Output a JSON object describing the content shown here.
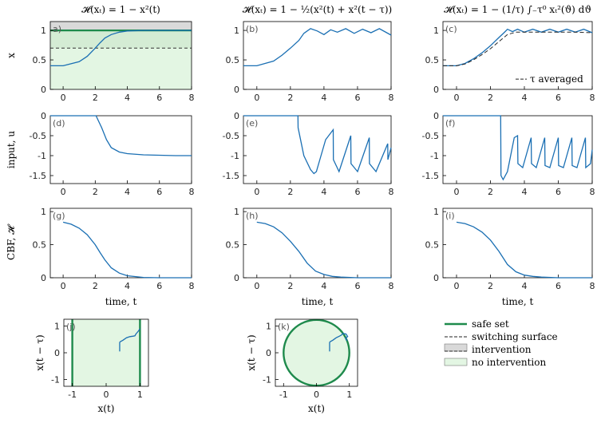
{
  "colors": {
    "curve": "#1a6fb3",
    "safe": "#1e8a4c",
    "fill": "#e3f6e3",
    "gray": "#d9d9d9",
    "dash": "#333333"
  },
  "chart_data": {
    "columns": [
      {
        "title": "𝓗(xₜ) = 1 − x²(t)"
      },
      {
        "title": "𝓗(xₜ) = 1 − ½(x²(t) + x²(t − τ))"
      },
      {
        "title": "𝓗(xₜ) = 1 − (1/τ) ∫₋τ⁰ xₜ²(ϑ) dϑ"
      }
    ],
    "rows": [
      {
        "ylabel": "x",
        "xlabel": "",
        "yticks": [
          "0",
          "0.5",
          "1"
        ],
        "yvals": [
          0,
          0.5,
          1
        ],
        "ylim": [
          0,
          1.15
        ]
      },
      {
        "ylabel": "input, u",
        "xlabel": "",
        "yticks": [
          "0",
          "-0.5",
          "-1",
          "-1.5"
        ],
        "yvals": [
          0,
          -0.5,
          -1,
          -1.5
        ],
        "ylim": [
          -1.7,
          0
        ]
      },
      {
        "ylabel": "CBF, 𝓗",
        "xlabel": "time, t",
        "yticks": [
          "0",
          "0.5",
          "1"
        ],
        "yvals": [
          0,
          0.5,
          1
        ],
        "ylim": [
          0,
          1.05
        ]
      }
    ],
    "xticks": [
      "0",
      "2",
      "4",
      "6",
      "8"
    ],
    "xvals": [
      0,
      2,
      4,
      6,
      8
    ],
    "xlim": [
      -0.8,
      8
    ],
    "panel_labels": [
      "a)",
      "(b)",
      "(c)",
      "(d)",
      "(e)",
      "(f)",
      "(g)",
      "(h)",
      "(i)",
      "(j)",
      "(k)"
    ],
    "state": [
      {
        "t": [
          -0.8,
          0,
          1,
          1.5,
          2,
          2.3,
          2.6,
          3,
          3.5,
          4,
          5,
          6,
          8
        ],
        "x": [
          0.4,
          0.4,
          0.47,
          0.56,
          0.7,
          0.79,
          0.87,
          0.93,
          0.97,
          0.99,
          1.0,
          1.0,
          1.0
        ]
      },
      {
        "t": [
          -0.8,
          0,
          1,
          1.5,
          2,
          2.5,
          2.8,
          3.2,
          3.6,
          4,
          4.4,
          4.8,
          5.3,
          5.8,
          6.3,
          6.8,
          7.3,
          8
        ],
        "x": [
          0.4,
          0.4,
          0.48,
          0.58,
          0.7,
          0.83,
          0.95,
          1.03,
          0.99,
          0.93,
          1.01,
          0.97,
          1.03,
          0.95,
          1.02,
          0.96,
          1.03,
          0.92
        ]
      },
      {
        "t": [
          -0.8,
          0,
          0.5,
          1,
          1.5,
          2,
          2.5,
          2.8,
          3.0,
          3.3,
          3.6,
          4,
          4.5,
          5,
          5.5,
          6,
          6.5,
          7,
          7.5,
          8
        ],
        "x": [
          0.4,
          0.4,
          0.44,
          0.52,
          0.62,
          0.74,
          0.88,
          0.96,
          1.02,
          0.98,
          1.02,
          0.97,
          1.02,
          0.97,
          1.02,
          0.97,
          1.02,
          0.97,
          1.02,
          0.96
        ]
      }
    ],
    "tau_avg": {
      "t": [
        -0.8,
        0,
        0.5,
        1,
        1.5,
        2,
        2.5,
        3,
        3.5,
        4,
        5,
        6,
        7,
        8
      ],
      "x": [
        0.4,
        0.4,
        0.43,
        0.5,
        0.59,
        0.69,
        0.81,
        0.93,
        0.97,
        0.97,
        0.97,
        0.97,
        0.97,
        0.96
      ]
    },
    "input": [
      {
        "t": [
          -0.8,
          2.05,
          2.4,
          2.7,
          3,
          3.5,
          4,
          5,
          6,
          7,
          8
        ],
        "u": [
          0,
          0,
          -0.3,
          -0.6,
          -0.8,
          -0.91,
          -0.95,
          -0.98,
          -0.99,
          -1.0,
          -1.0
        ]
      },
      {
        "t": [
          -0.8,
          2.45,
          2.46,
          2.8,
          3.2,
          3.4,
          3.55,
          4.1,
          4.55,
          4.56,
          4.9,
          5.6,
          5.61,
          6.0,
          6.7,
          6.71,
          7.1,
          7.8,
          7.81,
          8
        ],
        "u": [
          0,
          0,
          -0.3,
          -1.0,
          -1.35,
          -1.45,
          -1.4,
          -0.6,
          -0.35,
          -1.1,
          -1.4,
          -0.5,
          -1.2,
          -1.4,
          -0.55,
          -1.2,
          -1.4,
          -0.7,
          -1.1,
          -0.8
        ]
      },
      {
        "t": [
          -0.8,
          2.6,
          2.62,
          2.75,
          3.0,
          3.4,
          3.6,
          3.62,
          3.9,
          4.4,
          4.42,
          4.7,
          5.2,
          5.22,
          5.5,
          6.0,
          6.02,
          6.3,
          6.8,
          6.82,
          7.1,
          7.6,
          7.62,
          7.9,
          8
        ],
        "u": [
          0,
          0,
          -1.5,
          -1.6,
          -1.4,
          -0.55,
          -0.5,
          -1.2,
          -1.3,
          -0.55,
          -1.2,
          -1.3,
          -0.55,
          -1.25,
          -1.3,
          -0.55,
          -1.25,
          -1.3,
          -0.55,
          -1.25,
          -1.3,
          -0.55,
          -1.3,
          -1.2,
          -0.85
        ]
      }
    ],
    "cbf": [
      {
        "t": [
          0,
          0.5,
          1,
          1.5,
          2,
          2.3,
          2.6,
          3,
          3.5,
          4,
          5,
          6,
          8
        ],
        "h": [
          0.84,
          0.81,
          0.75,
          0.65,
          0.5,
          0.38,
          0.27,
          0.15,
          0.07,
          0.03,
          0.005,
          0,
          0
        ]
      },
      {
        "t": [
          0,
          0.5,
          1,
          1.5,
          2,
          2.5,
          3,
          3.5,
          4,
          4.5,
          5,
          6,
          8
        ],
        "h": [
          0.84,
          0.82,
          0.77,
          0.68,
          0.55,
          0.4,
          0.22,
          0.1,
          0.05,
          0.02,
          0.01,
          0,
          0
        ]
      },
      {
        "t": [
          0,
          0.5,
          1,
          1.5,
          2,
          2.5,
          3,
          3.5,
          4,
          4.5,
          5,
          6,
          8
        ],
        "h": [
          0.84,
          0.82,
          0.77,
          0.69,
          0.57,
          0.4,
          0.2,
          0.09,
          0.04,
          0.02,
          0.01,
          0,
          0
        ]
      }
    ],
    "phase": {
      "xlabel": "x(t)",
      "ylabel": "x(t − τ)",
      "j": {
        "xticks": [
          "-1",
          "0",
          "1"
        ],
        "xvals": [
          -1,
          0,
          1
        ],
        "yticks": [
          "1",
          "0",
          "-1"
        ],
        "yvals": [
          1,
          0,
          -1
        ],
        "path_x": [
          0.4,
          0.4,
          0.5,
          0.6,
          0.7,
          0.8,
          0.85,
          0.88,
          0.92,
          0.96,
          1.0
        ],
        "path_y": [
          0.4,
          0.4,
          0.47,
          0.56,
          0.6,
          0.62,
          0.63,
          0.7,
          0.76,
          0.82,
          0.9
        ]
      },
      "k": {
        "xticks": [
          "-1",
          "0",
          "1"
        ],
        "xvals": [
          -1,
          0,
          1
        ],
        "yticks": [
          "1",
          "0",
          "-1"
        ],
        "yvals": [
          1,
          0,
          -1
        ],
        "path_x": [
          0.4,
          0.4,
          0.5,
          0.6,
          0.7,
          0.76,
          0.8,
          0.9,
          0.95,
          0.88,
          0.93
        ],
        "path_y": [
          0.4,
          0.4,
          0.47,
          0.56,
          0.62,
          0.66,
          0.72,
          0.7,
          0.6,
          0.55,
          0.45
        ]
      }
    },
    "legend": [
      {
        "label": "safe set",
        "kind": "safe"
      },
      {
        "label": "switching surface",
        "kind": "dash"
      },
      {
        "label": "intervention",
        "kind": "gray"
      },
      {
        "label": "no intervention",
        "kind": "fill"
      }
    ],
    "annotation": "τ averaged"
  }
}
